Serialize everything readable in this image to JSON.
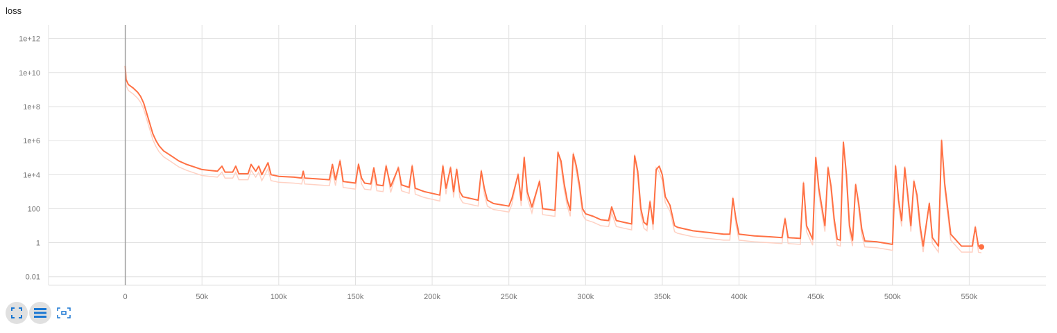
{
  "card": {
    "title": "loss"
  },
  "colors": {
    "smoothed": "#ff7043",
    "raw": "#ffccbc",
    "grid": "#e0e0e0",
    "axis": "#9e9e9e",
    "zero_line": "#9e9e9e",
    "icon": "#1976d2"
  },
  "toolbar": {
    "buttons": [
      {
        "name": "fit-domain-button",
        "icon": "expand-icon"
      },
      {
        "name": "log-scale-button",
        "icon": "list-icon"
      },
      {
        "name": "fit-data-button",
        "icon": "fit-icon"
      }
    ]
  },
  "chart_data": {
    "type": "line",
    "title": "loss",
    "xlabel": "",
    "ylabel": "",
    "y_scale": "log",
    "xlim": [
      -50000,
      600000
    ],
    "ylim_log10": [
      -2.5,
      12.8
    ],
    "x_ticks": [
      {
        "value": 0,
        "label": "0"
      },
      {
        "value": 50000,
        "label": "50k"
      },
      {
        "value": 100000,
        "label": "100k"
      },
      {
        "value": 150000,
        "label": "150k"
      },
      {
        "value": 200000,
        "label": "200k"
      },
      {
        "value": 250000,
        "label": "250k"
      },
      {
        "value": 300000,
        "label": "300k"
      },
      {
        "value": 350000,
        "label": "350k"
      },
      {
        "value": 400000,
        "label": "400k"
      },
      {
        "value": 450000,
        "label": "450k"
      },
      {
        "value": 500000,
        "label": "500k"
      },
      {
        "value": 550000,
        "label": "550k"
      }
    ],
    "y_ticks": [
      {
        "log10": -2,
        "label": "0.01"
      },
      {
        "log10": 0,
        "label": "1"
      },
      {
        "log10": 2,
        "label": "100"
      },
      {
        "log10": 4,
        "label": "1e+4"
      },
      {
        "log10": 6,
        "label": "1e+6"
      },
      {
        "log10": 8,
        "label": "1e+8"
      },
      {
        "log10": 10,
        "label": "1e+10"
      },
      {
        "log10": 12,
        "label": "1e+12"
      }
    ],
    "grid": true,
    "series": [
      {
        "name": "smoothed",
        "points_log10": [
          [
            0,
            10.4
          ],
          [
            500,
            9.6
          ],
          [
            2000,
            9.3
          ],
          [
            5000,
            9.1
          ],
          [
            8000,
            8.85
          ],
          [
            10000,
            8.6
          ],
          [
            12000,
            8.2
          ],
          [
            14000,
            7.6
          ],
          [
            16000,
            7.0
          ],
          [
            18000,
            6.4
          ],
          [
            20000,
            6.0
          ],
          [
            22000,
            5.7
          ],
          [
            25000,
            5.4
          ],
          [
            30000,
            5.1
          ],
          [
            35000,
            4.8
          ],
          [
            40000,
            4.6
          ],
          [
            45000,
            4.45
          ],
          [
            50000,
            4.3
          ],
          [
            55000,
            4.25
          ],
          [
            60000,
            4.2
          ],
          [
            63000,
            4.5
          ],
          [
            65000,
            4.15
          ],
          [
            70000,
            4.15
          ],
          [
            72000,
            4.5
          ],
          [
            74000,
            4.05
          ],
          [
            80000,
            4.05
          ],
          [
            82000,
            4.6
          ],
          [
            85000,
            4.2
          ],
          [
            87000,
            4.5
          ],
          [
            89000,
            4.0
          ],
          [
            93000,
            4.7
          ],
          [
            95000,
            4.0
          ],
          [
            100000,
            3.9
          ],
          [
            110000,
            3.85
          ],
          [
            115000,
            3.8
          ],
          [
            116000,
            4.2
          ],
          [
            117000,
            3.8
          ],
          [
            125000,
            3.75
          ],
          [
            133000,
            3.7
          ],
          [
            135000,
            4.6
          ],
          [
            137000,
            3.7
          ],
          [
            140000,
            4.8
          ],
          [
            142000,
            3.6
          ],
          [
            150000,
            3.5
          ],
          [
            152000,
            4.6
          ],
          [
            154000,
            3.8
          ],
          [
            156000,
            3.5
          ],
          [
            160000,
            3.45
          ],
          [
            162000,
            4.4
          ],
          [
            164000,
            3.4
          ],
          [
            168000,
            3.35
          ],
          [
            170000,
            4.5
          ],
          [
            173000,
            3.3
          ],
          [
            178000,
            4.4
          ],
          [
            180000,
            3.4
          ],
          [
            185000,
            3.25
          ],
          [
            187000,
            4.5
          ],
          [
            189000,
            3.2
          ],
          [
            192000,
            3.1
          ],
          [
            195000,
            3.0
          ],
          [
            200000,
            2.9
          ],
          [
            205000,
            2.8
          ],
          [
            207000,
            4.5
          ],
          [
            209000,
            3.2
          ],
          [
            212000,
            4.4
          ],
          [
            214000,
            3.0
          ],
          [
            216000,
            4.3
          ],
          [
            218000,
            3.0
          ],
          [
            220000,
            2.7
          ],
          [
            230000,
            2.5
          ],
          [
            232000,
            4.2
          ],
          [
            234000,
            3.2
          ],
          [
            236000,
            2.5
          ],
          [
            240000,
            2.3
          ],
          [
            250000,
            2.15
          ],
          [
            252000,
            2.6
          ],
          [
            256000,
            4.0
          ],
          [
            258000,
            2.5
          ],
          [
            260000,
            5.0
          ],
          [
            262000,
            3.0
          ],
          [
            265000,
            2.1
          ],
          [
            270000,
            3.6
          ],
          [
            272000,
            2.0
          ],
          [
            280000,
            1.9
          ],
          [
            282000,
            5.3
          ],
          [
            284000,
            4.8
          ],
          [
            286000,
            3.5
          ],
          [
            288000,
            2.5
          ],
          [
            290000,
            1.9
          ],
          [
            292000,
            5.2
          ],
          [
            294000,
            4.5
          ],
          [
            296000,
            3.4
          ],
          [
            298000,
            2.0
          ],
          [
            300000,
            1.7
          ],
          [
            305000,
            1.55
          ],
          [
            310000,
            1.35
          ],
          [
            315000,
            1.3
          ],
          [
            317000,
            2.1
          ],
          [
            320000,
            1.3
          ],
          [
            325000,
            1.2
          ],
          [
            330000,
            1.1
          ],
          [
            332000,
            5.1
          ],
          [
            334000,
            4.2
          ],
          [
            336000,
            2.0
          ],
          [
            338000,
            1.2
          ],
          [
            340000,
            1.05
          ],
          [
            342000,
            2.4
          ],
          [
            344000,
            1.1
          ],
          [
            346000,
            4.3
          ],
          [
            348000,
            4.5
          ],
          [
            350000,
            4.0
          ],
          [
            352000,
            2.7
          ],
          [
            355000,
            2.2
          ],
          [
            358000,
            1.0
          ],
          [
            360000,
            0.9
          ],
          [
            370000,
            0.7
          ],
          [
            380000,
            0.6
          ],
          [
            390000,
            0.5
          ],
          [
            394000,
            0.5
          ],
          [
            396000,
            2.6
          ],
          [
            398000,
            1.4
          ],
          [
            400000,
            0.5
          ],
          [
            410000,
            0.4
          ],
          [
            420000,
            0.35
          ],
          [
            428000,
            0.3
          ],
          [
            430000,
            1.4
          ],
          [
            432000,
            0.3
          ],
          [
            440000,
            0.25
          ],
          [
            442000,
            3.5
          ],
          [
            444000,
            1.0
          ],
          [
            448000,
            0.2
          ],
          [
            450000,
            5.0
          ],
          [
            452000,
            3.2
          ],
          [
            454000,
            2.1
          ],
          [
            456000,
            1.0
          ],
          [
            458000,
            4.4
          ],
          [
            460000,
            3.3
          ],
          [
            462000,
            1.4
          ],
          [
            464000,
            0.2
          ],
          [
            466000,
            0.15
          ],
          [
            468000,
            5.9
          ],
          [
            470000,
            4.0
          ],
          [
            472000,
            1.0
          ],
          [
            474000,
            0.15
          ],
          [
            476000,
            3.4
          ],
          [
            478000,
            2.3
          ],
          [
            480000,
            0.8
          ],
          [
            482000,
            0.1
          ],
          [
            490000,
            0.05
          ],
          [
            500000,
            -0.1
          ],
          [
            502000,
            4.5
          ],
          [
            504000,
            2.5
          ],
          [
            506000,
            1.3
          ],
          [
            508000,
            4.4
          ],
          [
            510000,
            2.8
          ],
          [
            512000,
            1.0
          ],
          [
            514000,
            3.6
          ],
          [
            516000,
            2.8
          ],
          [
            518000,
            1.0
          ],
          [
            520000,
            -0.2
          ],
          [
            524000,
            2.3
          ],
          [
            526000,
            0.3
          ],
          [
            530000,
            -0.2
          ],
          [
            532000,
            6.0
          ],
          [
            534000,
            3.5
          ],
          [
            536000,
            2.0
          ],
          [
            538000,
            0.5
          ],
          [
            545000,
            -0.2
          ],
          [
            552000,
            -0.2
          ],
          [
            554000,
            0.9
          ],
          [
            556000,
            -0.2
          ],
          [
            558000,
            -0.25
          ]
        ]
      }
    ]
  }
}
